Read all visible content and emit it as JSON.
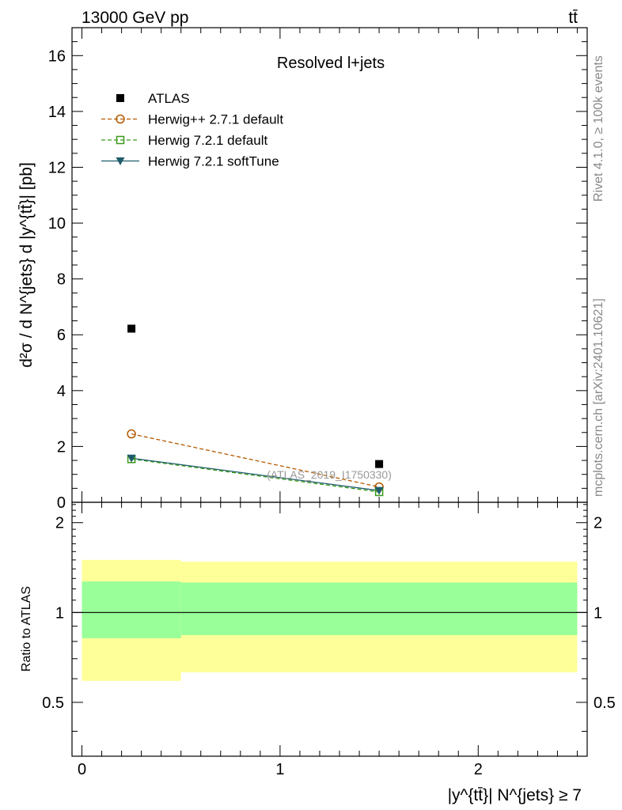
{
  "header": {
    "left": "13000 GeV pp",
    "right": "tt̄"
  },
  "side_text": {
    "top": "Rivet 4.1.0, ≥ 100k events",
    "bottom": "mcplots.cern.ch [arXiv:2401.10621]"
  },
  "watermark": "(ATLAS_2019_I1750330)",
  "chart_data": [
    {
      "type": "line",
      "title": "Resolved l+jets",
      "ylabel": "d²σ / d N^{jets} d |y^{tt̄}| [pb]",
      "ylim": [
        0,
        17
      ],
      "xlim": [
        -0.05,
        2.55
      ],
      "y_ticks": [
        "0",
        "2",
        "4",
        "6",
        "8",
        "10",
        "12",
        "14",
        "16"
      ],
      "x_ticks": [
        "0",
        "1",
        "2"
      ],
      "legend_placement": "top-left",
      "series": [
        {
          "name": "ATLAS",
          "marker": "filled-square",
          "color": "#000000",
          "points": [
            {
              "x": 0.25,
              "y": 6.22
            },
            {
              "x": 1.5,
              "y": 1.37
            }
          ]
        },
        {
          "name": "Herwig++ 2.7.1 default",
          "marker": "open-circle",
          "line": "dashed",
          "color": "#b35900",
          "points": [
            {
              "x": 0.25,
              "y": 2.45
            },
            {
              "x": 1.5,
              "y": 0.55
            }
          ]
        },
        {
          "name": "Herwig 7.2.1 default",
          "marker": "open-square",
          "line": "dashed",
          "color": "#3a9a1a",
          "points": [
            {
              "x": 0.25,
              "y": 1.55
            },
            {
              "x": 1.5,
              "y": 0.37
            }
          ]
        },
        {
          "name": "Herwig 7.2.1 softTune",
          "marker": "filled-triangle-down",
          "line": "solid",
          "color": "#1f5c6b",
          "points": [
            {
              "x": 0.25,
              "y": 1.58
            },
            {
              "x": 1.5,
              "y": 0.42
            }
          ]
        }
      ]
    },
    {
      "type": "area",
      "ylabel": "Ratio to ATLAS",
      "xlabel": "|y^{tt̄}| N^{jets} ≥ 7",
      "ylim": [
        0.33,
        2.34
      ],
      "y_ticks": [
        "0.5",
        "1",
        "2"
      ],
      "x_ticks": [
        "0",
        "1",
        "2"
      ],
      "reference_line": 1,
      "bands": [
        {
          "x_from": 0.0,
          "x_to": 0.5,
          "yellow": [
            0.59,
            1.5
          ],
          "green": [
            0.82,
            1.27
          ]
        },
        {
          "x_from": 0.5,
          "x_to": 2.5,
          "yellow": [
            0.63,
            1.48
          ],
          "green": [
            0.84,
            1.26
          ]
        }
      ],
      "colors": {
        "yellow": "#ffff99",
        "green": "#99ff99"
      }
    }
  ]
}
